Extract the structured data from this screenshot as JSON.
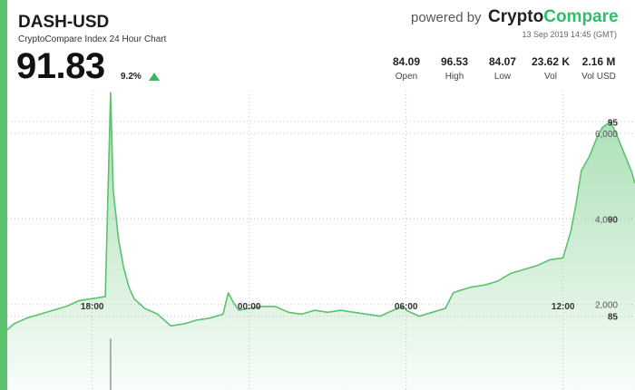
{
  "header": {
    "pair": "DASH-USD",
    "subtitle": "CryptoCompare Index 24 Hour Chart",
    "price": "91.83",
    "change": "9.2%",
    "change_direction": "up",
    "powered_by": "powered by",
    "brand_part1": "Crypto",
    "brand_part2": "Compare",
    "timestamp": "13 Sep 2019 14:45 (GMT)"
  },
  "stats": [
    {
      "value": "84.09",
      "label": "Open"
    },
    {
      "value": "96.53",
      "label": "High"
    },
    {
      "value": "84.07",
      "label": "Low"
    },
    {
      "value": "23.62 K",
      "label": "Vol"
    },
    {
      "value": "2.16 M",
      "label": "Vol USD"
    }
  ],
  "colors": {
    "accent": "#5cc26f",
    "line": "#5cc26f",
    "area": "#5cc26f",
    "brand_green": "#2bbf6a",
    "up": "#3fb65a"
  },
  "chart_data": {
    "type": "area",
    "title": "CryptoCompare Index 24 Hour Chart",
    "price_axis": {
      "ticks": [
        85,
        90,
        95
      ],
      "ylim": [
        81.2,
        96.6
      ]
    },
    "volume_axis": {
      "ticks": [
        "2,000",
        "4,000",
        "6,000"
      ],
      "tick_values": [
        2000,
        4000,
        6000
      ],
      "ylim": [
        0,
        7000
      ]
    },
    "x_ticks": [
      "18:00",
      "00:00",
      "06:00",
      "12:00"
    ],
    "x_tick_hours": [
      18,
      24,
      30,
      36
    ],
    "x_range_hours": [
      14.75,
      38.75
    ],
    "grid": true,
    "series": [
      {
        "type": "area",
        "x": [
          14.75,
          15.0,
          15.5,
          16.0,
          16.5,
          17.0,
          17.5,
          18.0,
          18.5,
          18.7,
          18.8,
          19.0,
          19.2,
          19.4,
          19.6,
          20.0,
          20.5,
          21.0,
          21.5,
          22.0,
          22.5,
          23.0,
          23.2,
          23.4,
          23.6,
          24.0,
          24.5,
          25.0,
          25.5,
          26.0,
          26.5,
          27.0,
          27.5,
          28.0,
          28.5,
          29.0,
          29.5,
          29.9,
          30.0,
          30.5,
          31.0,
          31.5,
          31.8,
          32.0,
          32.5,
          33.0,
          33.5,
          34.0,
          34.5,
          35.0,
          35.5,
          36.0,
          36.3,
          36.5,
          36.7,
          37.0,
          37.3,
          37.5,
          37.8,
          38.0,
          38.3,
          38.6,
          38.75
        ],
        "y": [
          84.3,
          84.6,
          84.9,
          85.1,
          85.3,
          85.5,
          85.8,
          85.9,
          86.0,
          96.5,
          91.5,
          89.0,
          87.5,
          86.5,
          85.9,
          85.4,
          85.1,
          84.5,
          84.6,
          84.8,
          84.9,
          85.1,
          86.2,
          85.7,
          85.3,
          85.4,
          85.5,
          85.5,
          85.2,
          85.1,
          85.3,
          85.2,
          85.3,
          85.2,
          85.1,
          85.0,
          85.3,
          85.5,
          85.3,
          85.0,
          85.2,
          85.4,
          86.2,
          86.3,
          86.5,
          86.6,
          86.8,
          87.2,
          87.4,
          87.6,
          87.9,
          88.0,
          89.4,
          90.8,
          92.5,
          93.2,
          94.2,
          94.7,
          95.0,
          94.5,
          93.5,
          92.5,
          91.83
        ]
      }
    ],
    "volume": {
      "x": [
        18.7
      ],
      "values": [
        1200
      ]
    }
  }
}
